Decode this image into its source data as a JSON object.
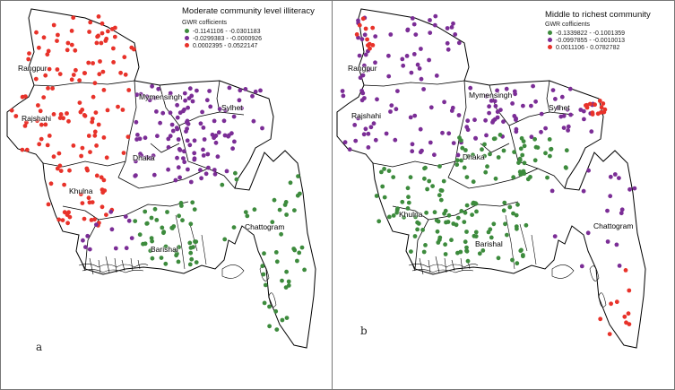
{
  "colors": {
    "green": "#3d8b3d",
    "purple": "#7b2d96",
    "red": "#e8322a"
  },
  "panels": [
    {
      "letter": "a",
      "title": "Moderate community level illiteracy",
      "legend_subtitle": "GWR cofficients",
      "legend": [
        {
          "label": "-0.1141106 - -0.0301183",
          "color": "#3d8b3d"
        },
        {
          "label": "-0.0299383 - -0.0000926",
          "color": "#7b2d96"
        },
        {
          "label": "0.0002395 - 0.0522147",
          "color": "#e8322a"
        }
      ],
      "cities": {
        "rangpur": "Rangpur",
        "rajshahi": "Rajshahi",
        "mymensingh": "Mymensingh",
        "sylhet": "Sylhet",
        "dhaka": "Dhaka",
        "khulna": "Khulna",
        "barishal": "Barishal",
        "chattogram": "Chattogram"
      }
    },
    {
      "letter": "b",
      "title": "Middle to richest community",
      "legend_subtitle": "GWR cofficients",
      "legend": [
        {
          "label": "-0.1339822 - -0.1001359",
          "color": "#3d8b3d"
        },
        {
          "label": "-0.0997855 - -0.0010013",
          "color": "#7b2d96"
        },
        {
          "label": "0.0011106 - 0.0782782",
          "color": "#e8322a"
        }
      ],
      "cities": {
        "rangpur": "Rangpur",
        "rajshahi": "Rajshahi",
        "mymensingh": "Mymensingh",
        "sylhet": "Sylhet",
        "dhaka": "Dhaka",
        "khulna": "Khulna",
        "barishal": "Barishal",
        "chattogram": "Chattogram"
      }
    }
  ]
}
